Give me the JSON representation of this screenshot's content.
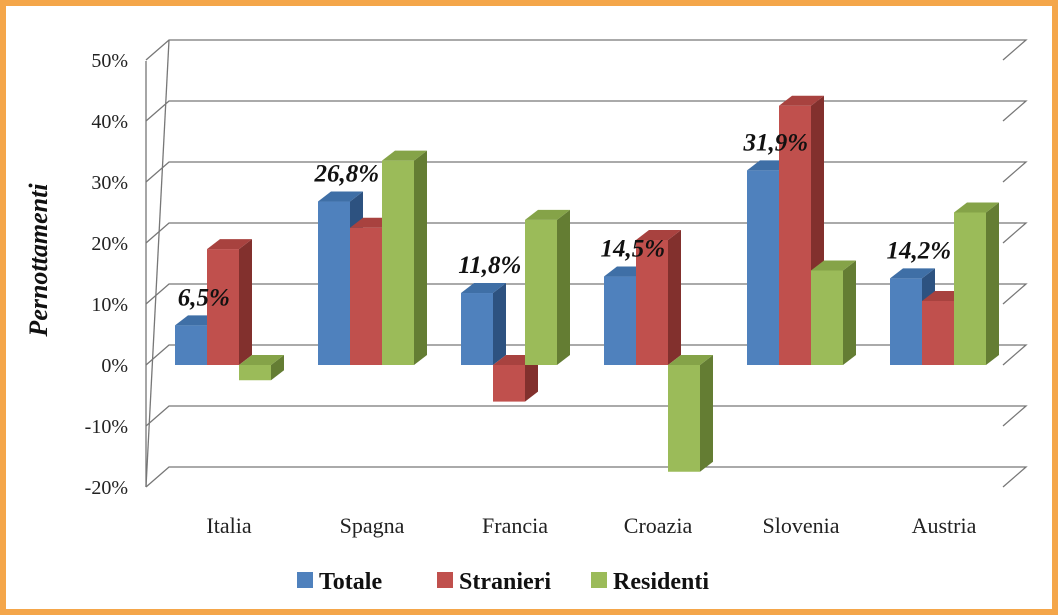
{
  "colors": {
    "frame": "#f4a64a",
    "Totale": [
      "#4f81bd",
      "#3f6fa6",
      "#2d5280"
    ],
    "Stranieri": [
      "#c0504d",
      "#a8423f",
      "#82302d"
    ],
    "Residenti": [
      "#9bbb59",
      "#85a348",
      "#647d33"
    ]
  },
  "chart_data": {
    "type": "bar",
    "ylabel": "Pernottamenti",
    "ylim": [
      -20,
      50
    ],
    "yticks": [
      "50%",
      "40%",
      "30%",
      "20%",
      "10%",
      "0%",
      "-10%",
      "-20%"
    ],
    "ytick_values": [
      50,
      40,
      30,
      20,
      10,
      0,
      -10,
      -20
    ],
    "categories": [
      "Italia",
      "Spagna",
      "Francia",
      "Croazia",
      "Slovenia",
      "Austria"
    ],
    "series": [
      {
        "name": "Totale",
        "values": [
          6.5,
          26.8,
          11.8,
          14.5,
          31.9,
          14.2
        ]
      },
      {
        "name": "Stranieri",
        "values": [
          19,
          22.5,
          -6,
          20.5,
          42.5,
          10.5
        ]
      },
      {
        "name": "Residenti",
        "values": [
          -2.5,
          33.5,
          23.8,
          -17.5,
          15.5,
          25
        ]
      }
    ],
    "data_labels": [
      "6,5%",
      "26,8%",
      "11,8%",
      "14,5%",
      "31,9%",
      "14,2%"
    ],
    "grid": true,
    "legend": "bottom",
    "style": "3d-clustered-column"
  }
}
